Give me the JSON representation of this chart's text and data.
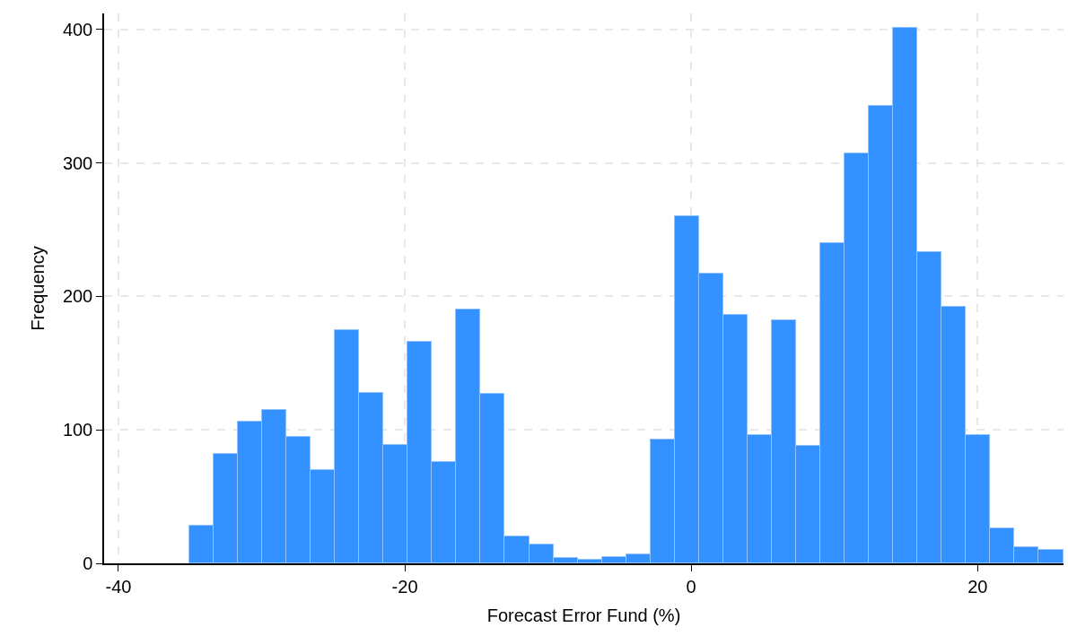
{
  "chart_data": {
    "type": "histogram",
    "xlabel": "Forecast Error Fund (%)",
    "ylabel": "Frequency",
    "color": "#3392ff",
    "bins": [
      -35.05,
      -33.36,
      -31.66,
      -29.97,
      -28.27,
      -26.58,
      -24.88,
      -23.19,
      -21.49,
      -19.8,
      -18.1,
      -16.41,
      -14.71,
      -13.02,
      -11.32,
      -9.63,
      -7.93,
      -6.24,
      -4.54,
      -2.85,
      -1.15,
      0.54,
      2.24,
      3.93,
      5.63,
      7.32,
      9.02,
      10.71,
      12.41,
      14.1,
      15.8,
      17.49,
      19.19,
      20.88,
      22.58,
      24.27,
      25.97
    ],
    "values": [
      28,
      82,
      106,
      115,
      95,
      70,
      175,
      128,
      89,
      166,
      76,
      190,
      127,
      20,
      14,
      4,
      3,
      5,
      7,
      93,
      260,
      217,
      186,
      96,
      182,
      88,
      240,
      307,
      343,
      401,
      233,
      192,
      96,
      26,
      12,
      10
    ],
    "xlim": [
      -41,
      26
    ],
    "xticks": [
      -40,
      -20,
      0,
      20
    ],
    "ylim": [
      0,
      412
    ],
    "yticks": [
      0,
      100,
      200,
      300,
      400
    ],
    "grid": true
  }
}
